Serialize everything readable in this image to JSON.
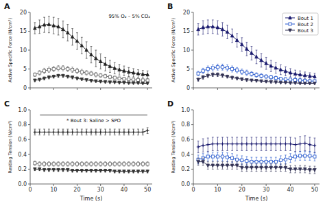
{
  "chart_data": [
    {
      "type": "line",
      "title": "A",
      "annotation": "95% O₂ – 5% CO₂",
      "y_label": "Active Specific Force (N/cm²)",
      "x": [
        2,
        4,
        6,
        8,
        10,
        12,
        14,
        16,
        18,
        20,
        22,
        24,
        26,
        28,
        30,
        32,
        34,
        36,
        38,
        40,
        42,
        44,
        46,
        48,
        50
      ],
      "xlim": [
        0,
        52
      ],
      "xticks": [
        0,
        10,
        20,
        30,
        40,
        50
      ],
      "ylim": [
        0,
        20
      ],
      "yticks": [
        0,
        5,
        10,
        15,
        20
      ],
      "tick_labels": "y",
      "series": [
        {
          "color": "#222222",
          "marker": "triangle-up",
          "values": [
            15.8,
            16.2,
            16.7,
            16.8,
            16.5,
            16.2,
            15.5,
            14.6,
            13.5,
            12.4,
            11.2,
            10.0,
            8.8,
            7.8,
            7.0,
            6.3,
            5.7,
            5.2,
            4.8,
            4.5,
            4.2,
            4.0,
            3.8,
            3.6,
            3.5
          ],
          "error": [
            1.5,
            1.8,
            2.0,
            2.2,
            2.2,
            2.2,
            2.2,
            2.2,
            2.2,
            2.2,
            2.2,
            2.2,
            2.2,
            2.2,
            2.0,
            1.8,
            1.6,
            1.5,
            1.4,
            1.3,
            1.2,
            1.1,
            1.0,
            1.0,
            1.0
          ]
        },
        {
          "color": "#666666",
          "marker": "square-open",
          "values": [
            3.5,
            4.0,
            4.5,
            4.8,
            5.0,
            5.2,
            5.2,
            5.0,
            4.8,
            4.5,
            4.2,
            4.0,
            3.8,
            3.5,
            3.3,
            3.1,
            2.9,
            2.7,
            2.5,
            2.4,
            2.3,
            2.2,
            2.1,
            2.0,
            2.0
          ],
          "error": [
            0.5,
            0.6,
            0.7,
            0.7,
            0.7,
            0.7,
            0.7,
            0.7,
            0.7,
            0.7,
            0.7,
            0.6,
            0.6,
            0.6,
            0.5,
            0.5,
            0.5,
            0.4,
            0.4,
            0.4,
            0.3,
            0.3,
            0.3,
            0.3,
            0.3
          ]
        },
        {
          "color": "#333333",
          "marker": "triangle-down",
          "values": [
            2.0,
            2.2,
            2.5,
            2.8,
            3.0,
            3.2,
            3.2,
            3.0,
            2.8,
            2.5,
            2.3,
            2.1,
            1.9,
            1.8,
            1.7,
            1.6,
            1.5,
            1.5,
            1.4,
            1.4,
            1.3,
            1.3,
            1.3,
            1.2,
            1.2
          ],
          "error": [
            0.3,
            0.3,
            0.4,
            0.4,
            0.4,
            0.4,
            0.4,
            0.4,
            0.4,
            0.4,
            0.3,
            0.3,
            0.3,
            0.3,
            0.3,
            0.3,
            0.2,
            0.2,
            0.2,
            0.2,
            0.2,
            0.2,
            0.2,
            0.2,
            0.2
          ]
        }
      ]
    },
    {
      "type": "line",
      "title": "B",
      "y_label": "Active Specific Force (N/cm²)",
      "x": [
        2,
        4,
        6,
        8,
        10,
        12,
        14,
        16,
        18,
        20,
        22,
        24,
        26,
        28,
        30,
        32,
        34,
        36,
        38,
        40,
        42,
        44,
        46,
        48,
        50
      ],
      "xlim": [
        0,
        52
      ],
      "xticks": [
        0,
        10,
        20,
        30,
        40,
        50
      ],
      "ylim": [
        0,
        20
      ],
      "yticks": [
        0,
        5,
        10,
        15,
        20
      ],
      "tick_labels": "y",
      "legend": "upper-right",
      "series": [
        {
          "name": "Bout 1",
          "color": "#1a1a6e",
          "marker": "triangle-up",
          "values": [
            15.5,
            16.0,
            16.2,
            16.2,
            16.0,
            15.5,
            14.8,
            13.8,
            12.6,
            11.5,
            10.3,
            9.2,
            8.2,
            7.3,
            6.5,
            5.8,
            5.3,
            4.8,
            4.4,
            4.0,
            3.7,
            3.5,
            3.3,
            3.1,
            3.0
          ],
          "error": [
            1.5,
            1.8,
            1.8,
            1.8,
            1.8,
            1.8,
            1.8,
            1.8,
            1.8,
            1.8,
            1.8,
            1.8,
            1.8,
            1.8,
            1.6,
            1.5,
            1.4,
            1.3,
            1.2,
            1.1,
            1.0,
            1.0,
            0.9,
            0.9,
            0.9
          ]
        },
        {
          "name": "Bout 2",
          "color": "#2255cc",
          "marker": "square-open",
          "values": [
            3.8,
            4.5,
            5.0,
            5.3,
            5.5,
            5.5,
            5.3,
            5.0,
            4.7,
            4.3,
            4.0,
            3.7,
            3.4,
            3.2,
            3.0,
            2.8,
            2.6,
            2.4,
            2.3,
            2.2,
            2.1,
            2.0,
            1.9,
            1.8,
            1.8
          ],
          "error": [
            0.6,
            0.7,
            0.8,
            0.8,
            0.8,
            0.8,
            0.8,
            0.8,
            0.7,
            0.7,
            0.7,
            0.6,
            0.6,
            0.6,
            0.5,
            0.5,
            0.5,
            0.4,
            0.4,
            0.4,
            0.4,
            0.4,
            0.3,
            0.3,
            0.3
          ]
        },
        {
          "name": "Bout 3",
          "color": "#333355",
          "marker": "triangle-down",
          "values": [
            2.2,
            2.8,
            3.2,
            3.5,
            3.5,
            3.3,
            3.0,
            2.7,
            2.5,
            2.3,
            2.1,
            2.0,
            1.9,
            1.8,
            1.7,
            1.6,
            1.5,
            1.4,
            1.4,
            1.3,
            1.3,
            1.2,
            1.2,
            1.2,
            1.2
          ],
          "error": [
            0.4,
            0.5,
            0.5,
            0.5,
            0.5,
            0.5,
            0.4,
            0.4,
            0.4,
            0.4,
            0.3,
            0.3,
            0.3,
            0.3,
            0.3,
            0.3,
            0.2,
            0.2,
            0.2,
            0.2,
            0.2,
            0.2,
            0.2,
            0.2,
            0.2
          ]
        }
      ]
    },
    {
      "type": "line",
      "title": "C",
      "annotation": "* Bout 3: Saline > SPO",
      "x_label": "Time (s)",
      "y_label": "Resting Tension (N/cm²)",
      "x": [
        2,
        4,
        6,
        8,
        10,
        12,
        14,
        16,
        18,
        20,
        22,
        24,
        26,
        28,
        30,
        32,
        34,
        36,
        38,
        40,
        42,
        44,
        46,
        48,
        50
      ],
      "xlim": [
        0,
        52
      ],
      "xticks": [
        0,
        10,
        20,
        30,
        40,
        50
      ],
      "ylim": [
        0.0,
        1.0
      ],
      "yticks": [
        {
          "value": 0.0,
          "label": "0.0"
        },
        0.2,
        0.4,
        0.6,
        0.8,
        {
          "value": 1.0,
          "label": "1.0"
        }
      ],
      "series": [
        {
          "color": "#222222",
          "marker": "plus",
          "values": [
            0.7,
            0.7,
            0.7,
            0.7,
            0.7,
            0.7,
            0.7,
            0.7,
            0.7,
            0.7,
            0.7,
            0.7,
            0.7,
            0.7,
            0.7,
            0.7,
            0.7,
            0.7,
            0.7,
            0.7,
            0.7,
            0.7,
            0.7,
            0.7,
            0.72
          ],
          "error": [
            0.04,
            0.04,
            0.04,
            0.04,
            0.04,
            0.04,
            0.04,
            0.04,
            0.04,
            0.04,
            0.04,
            0.04,
            0.04,
            0.04,
            0.04,
            0.04,
            0.04,
            0.04,
            0.04,
            0.04,
            0.04,
            0.04,
            0.04,
            0.04,
            0.04
          ]
        },
        {
          "color": "#666666",
          "marker": "square-open",
          "values": [
            0.28,
            0.27,
            0.27,
            0.27,
            0.27,
            0.27,
            0.27,
            0.27,
            0.27,
            0.27,
            0.27,
            0.27,
            0.27,
            0.27,
            0.27,
            0.27,
            0.27,
            0.27,
            0.27,
            0.27,
            0.27,
            0.27,
            0.27,
            0.27,
            0.27
          ],
          "error": [
            0.03,
            0.03,
            0.03,
            0.03,
            0.03,
            0.03,
            0.03,
            0.03,
            0.03,
            0.03,
            0.03,
            0.03,
            0.03,
            0.03,
            0.03,
            0.03,
            0.03,
            0.03,
            0.03,
            0.03,
            0.03,
            0.03,
            0.03,
            0.03,
            0.03
          ]
        },
        {
          "color": "#333333",
          "marker": "triangle-down",
          "values": [
            0.2,
            0.2,
            0.19,
            0.19,
            0.19,
            0.19,
            0.19,
            0.19,
            0.18,
            0.18,
            0.18,
            0.18,
            0.18,
            0.18,
            0.18,
            0.18,
            0.18,
            0.17,
            0.17,
            0.17,
            0.17,
            0.17,
            0.17,
            0.17,
            0.17
          ],
          "error": [
            0.02,
            0.02,
            0.02,
            0.02,
            0.02,
            0.02,
            0.02,
            0.02,
            0.02,
            0.02,
            0.02,
            0.02,
            0.02,
            0.02,
            0.02,
            0.02,
            0.02,
            0.02,
            0.02,
            0.02,
            0.02,
            0.02,
            0.02,
            0.02,
            0.02
          ]
        }
      ]
    },
    {
      "type": "line",
      "title": "D",
      "x_label": "Time (s)",
      "y_label": "Resting Tension (N/cm²)",
      "x": [
        2,
        4,
        6,
        8,
        10,
        12,
        14,
        16,
        18,
        20,
        22,
        24,
        26,
        28,
        30,
        32,
        34,
        36,
        38,
        40,
        42,
        44,
        46,
        48,
        50
      ],
      "xlim": [
        0,
        52
      ],
      "xticks": [
        0,
        10,
        20,
        30,
        40,
        50
      ],
      "ylim": [
        0.0,
        1.0
      ],
      "yticks": [
        {
          "value": 0.0,
          "label": "0.0"
        },
        0.2,
        0.4,
        0.6,
        0.8,
        {
          "value": 1.0,
          "label": "1.0"
        }
      ],
      "series": [
        {
          "color": "#1a1a6e",
          "marker": "plus",
          "values": [
            0.5,
            0.52,
            0.53,
            0.54,
            0.54,
            0.54,
            0.54,
            0.54,
            0.54,
            0.54,
            0.54,
            0.54,
            0.54,
            0.54,
            0.54,
            0.54,
            0.54,
            0.54,
            0.54,
            0.54,
            0.53,
            0.54,
            0.55,
            0.53,
            0.52
          ],
          "error": [
            0.08,
            0.09,
            0.09,
            0.09,
            0.09,
            0.09,
            0.09,
            0.09,
            0.09,
            0.09,
            0.09,
            0.09,
            0.09,
            0.09,
            0.09,
            0.09,
            0.09,
            0.09,
            0.09,
            0.09,
            0.09,
            0.1,
            0.1,
            0.1,
            0.1
          ]
        },
        {
          "color": "#2255cc",
          "marker": "square-open",
          "values": [
            0.33,
            0.35,
            0.37,
            0.37,
            0.37,
            0.37,
            0.36,
            0.35,
            0.33,
            0.32,
            0.31,
            0.3,
            0.3,
            0.3,
            0.3,
            0.3,
            0.3,
            0.32,
            0.33,
            0.35,
            0.37,
            0.38,
            0.38,
            0.38,
            0.37
          ],
          "error": [
            0.06,
            0.06,
            0.06,
            0.06,
            0.06,
            0.06,
            0.06,
            0.06,
            0.06,
            0.06,
            0.06,
            0.06,
            0.06,
            0.06,
            0.06,
            0.06,
            0.06,
            0.06,
            0.06,
            0.06,
            0.06,
            0.06,
            0.06,
            0.06,
            0.06
          ]
        },
        {
          "color": "#333355",
          "marker": "triangle-down",
          "values": [
            0.3,
            0.3,
            0.25,
            0.25,
            0.25,
            0.25,
            0.25,
            0.25,
            0.25,
            0.22,
            0.22,
            0.22,
            0.22,
            0.22,
            0.22,
            0.22,
            0.22,
            0.22,
            0.22,
            0.2,
            0.2,
            0.2,
            0.2,
            0.19,
            0.19
          ],
          "error": [
            0.05,
            0.05,
            0.05,
            0.05,
            0.05,
            0.05,
            0.05,
            0.05,
            0.05,
            0.05,
            0.05,
            0.05,
            0.05,
            0.05,
            0.05,
            0.05,
            0.05,
            0.05,
            0.05,
            0.05,
            0.05,
            0.05,
            0.05,
            0.05,
            0.05
          ]
        }
      ]
    }
  ]
}
